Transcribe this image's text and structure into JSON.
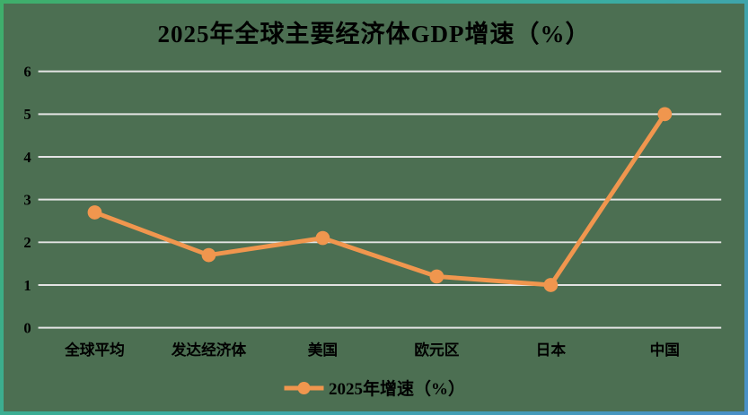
{
  "chart_data": {
    "type": "line",
    "title": "2025年全球主要经济体GDP增速（%）",
    "categories": [
      "全球平均",
      "发达经济体",
      "美国",
      "欧元区",
      "日本",
      "中国"
    ],
    "series": [
      {
        "name": "2025年增速（%）",
        "values": [
          2.7,
          1.7,
          2.1,
          1.2,
          1.0,
          5.0
        ]
      }
    ],
    "xlabel": "",
    "ylabel": "",
    "ylim": [
      0,
      6
    ],
    "yticks": [
      0,
      1,
      2,
      3,
      4,
      5,
      6
    ],
    "grid": true,
    "legend_position": "bottom"
  },
  "legend": {
    "label": "2025年增速（%）"
  },
  "colors": {
    "plot_background": "#4c6f52",
    "line": "#f0964e",
    "marker": "#f0964e",
    "gridline": "#e3e3e3",
    "text": "#000000",
    "border_gradient_start": "#3fae6a",
    "border_gradient_mid": "#3aada0",
    "border_gradient_end": "#4a90c8"
  }
}
